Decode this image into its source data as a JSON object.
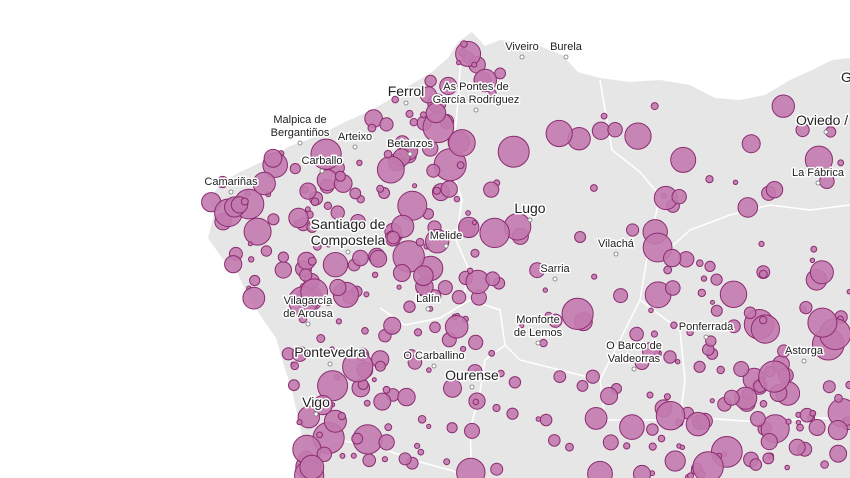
{
  "map": {
    "colors": {
      "sea": "#ffffff",
      "land": "#e6e6e6",
      "border": "#ffffff",
      "bubble_fill": "#c27aae",
      "bubble_stroke": "#8c2c70",
      "label": "#222222"
    },
    "labels": [
      {
        "id": "viveiro",
        "lines": [
          "Viveiro"
        ],
        "size": "small"
      },
      {
        "id": "burela",
        "lines": [
          "Burela"
        ],
        "size": "small"
      },
      {
        "id": "ferrol",
        "lines": [
          "Ferrol"
        ],
        "size": "big"
      },
      {
        "id": "as-pontes",
        "lines": [
          "As Pontes de",
          "García Rodríguez"
        ],
        "size": "small"
      },
      {
        "id": "malpica",
        "lines": [
          "Malpica de",
          "Bergantiños"
        ],
        "size": "small"
      },
      {
        "id": "arteixo",
        "lines": [
          "Arteixo"
        ],
        "size": "small"
      },
      {
        "id": "betanzos",
        "lines": [
          "Betanzos"
        ],
        "size": "small"
      },
      {
        "id": "carballo",
        "lines": [
          "Carballo"
        ],
        "size": "small"
      },
      {
        "id": "camarinas",
        "lines": [
          "Camariñas"
        ],
        "size": "small"
      },
      {
        "id": "santiago",
        "lines": [
          "Santiago de",
          "Compostela"
        ],
        "size": "big"
      },
      {
        "id": "lugo",
        "lines": [
          "Lugo"
        ],
        "size": "big"
      },
      {
        "id": "melide",
        "lines": [
          "Melide"
        ],
        "size": "small"
      },
      {
        "id": "vilacha",
        "lines": [
          "Vilachá"
        ],
        "size": "small"
      },
      {
        "id": "sarria",
        "lines": [
          "Sarria"
        ],
        "size": "small"
      },
      {
        "id": "vilagarcia",
        "lines": [
          "Vilagarcía",
          "de Arousa"
        ],
        "size": "small"
      },
      {
        "id": "lalin",
        "lines": [
          "Lalín"
        ],
        "size": "small"
      },
      {
        "id": "monforte",
        "lines": [
          "Monforte",
          "de Lemos"
        ],
        "size": "small"
      },
      {
        "id": "o-barco",
        "lines": [
          "O Barco de",
          "Valdeorras"
        ],
        "size": "small"
      },
      {
        "id": "ponferrada",
        "lines": [
          "Ponferrada"
        ],
        "size": "small"
      },
      {
        "id": "pontevedra",
        "lines": [
          "Pontevedra"
        ],
        "size": "big"
      },
      {
        "id": "o-carballino",
        "lines": [
          "O Carballino"
        ],
        "size": "small"
      },
      {
        "id": "ourense",
        "lines": [
          "Ourense"
        ],
        "size": "big"
      },
      {
        "id": "vigo",
        "lines": [
          "Vigo"
        ],
        "size": "big"
      },
      {
        "id": "astorga",
        "lines": [
          "Astorga"
        ],
        "size": "small"
      },
      {
        "id": "oviedo",
        "lines": [
          "Oviedo /"
        ],
        "size": "big"
      },
      {
        "id": "la-fabrica",
        "lines": [
          "La Fábrica"
        ],
        "size": "small"
      },
      {
        "id": "gijon",
        "lines": [
          "G"
        ],
        "size": "big"
      }
    ]
  }
}
